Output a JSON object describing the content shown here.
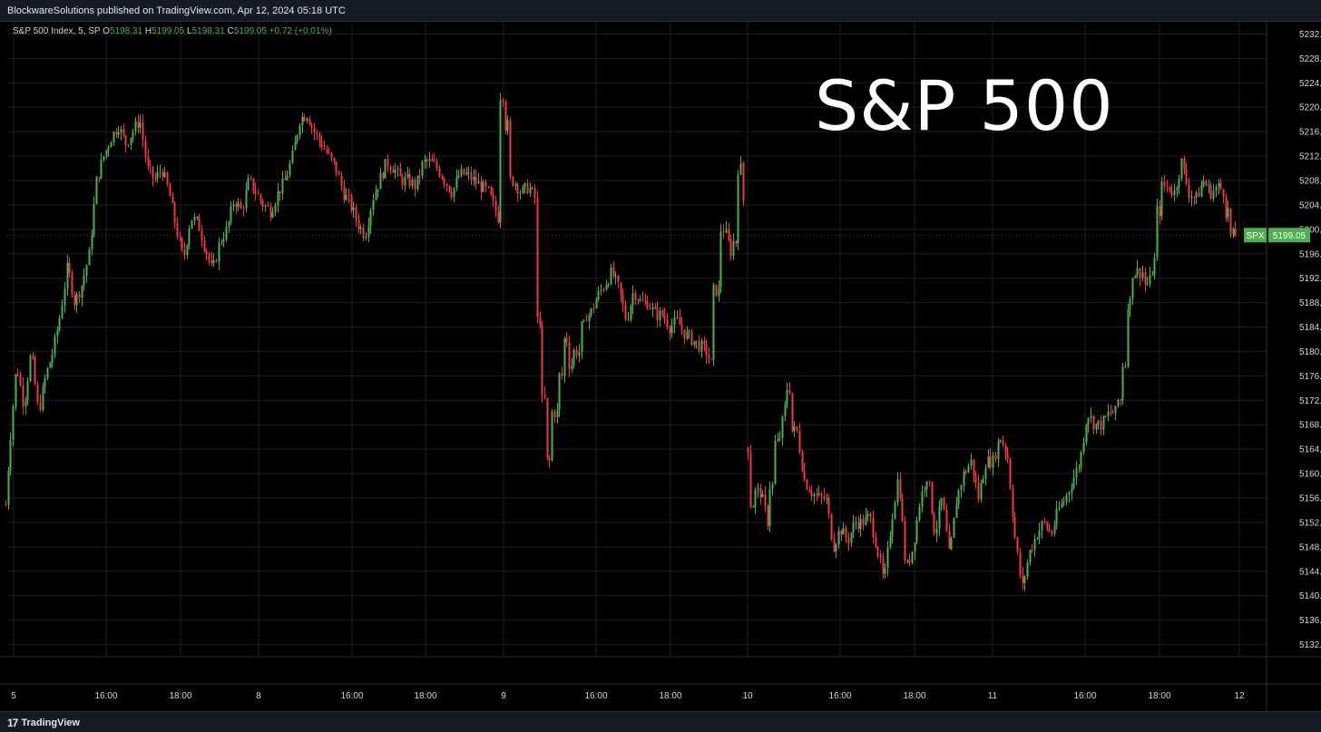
{
  "header": {
    "publish_line": "BlockwareSolutions published on TradingView.com, Apr 12, 2024 05:18 UTC"
  },
  "legend": {
    "symbol": "S&P 500 Index, 5, SP",
    "open_label": "O",
    "open": "5198.31",
    "high_label": "H",
    "high": "5199.05",
    "low_label": "L",
    "low": "5198.31",
    "close_label": "C",
    "close": "5199.05",
    "change": "+0.72 (+0.01%)"
  },
  "overlay_title": "S&P 500",
  "price_tag": {
    "symbol": "SPX",
    "price": "5199.05"
  },
  "footer": {
    "brand": "TradingView",
    "brand_mark": "17"
  },
  "colors": {
    "up": "#4caf50",
    "down": "#f23645",
    "grid": "#1c1f26",
    "axis_text": "#d1d4dc",
    "tag": "#4caf50"
  },
  "chart_data": {
    "type": "candlestick",
    "title": "S&P 500",
    "ylim": [
      5130,
      5234
    ],
    "y_ticks": [
      5132,
      5136,
      5140,
      5144,
      5148,
      5152,
      5156,
      5160,
      5164,
      5168,
      5172,
      5176,
      5180,
      5184,
      5188,
      5192,
      5196,
      5200,
      5204,
      5208,
      5212,
      5216,
      5220,
      5224,
      5228,
      5232
    ],
    "x_ticks": [
      "5",
      "16:00",
      "18:00",
      "8",
      "16:00",
      "18:00",
      "9",
      "16:00",
      "18:00",
      "10",
      "16:00",
      "18:00",
      "11",
      "16:00",
      "18:00",
      "12"
    ],
    "path": [
      [
        0,
        5157
      ],
      [
        3,
        5148
      ],
      [
        10,
        5164
      ],
      [
        18,
        5178
      ],
      [
        26,
        5171
      ],
      [
        34,
        5180
      ],
      [
        42,
        5170
      ],
      [
        50,
        5176
      ],
      [
        58,
        5180
      ],
      [
        66,
        5186
      ],
      [
        74,
        5194
      ],
      [
        82,
        5188
      ],
      [
        90,
        5191
      ],
      [
        98,
        5196
      ],
      [
        106,
        5208
      ],
      [
        114,
        5212
      ],
      [
        122,
        5215
      ],
      [
        130,
        5217
      ],
      [
        138,
        5214
      ],
      [
        146,
        5216
      ],
      [
        154,
        5218
      ],
      [
        162,
        5210
      ],
      [
        170,
        5208
      ],
      [
        178,
        5210
      ],
      [
        186,
        5206
      ],
      [
        194,
        5200
      ],
      [
        202,
        5195
      ],
      [
        210,
        5202
      ],
      [
        218,
        5201
      ],
      [
        226,
        5197
      ],
      [
        234,
        5193
      ],
      [
        242,
        5198
      ],
      [
        250,
        5200
      ],
      [
        258,
        5205
      ],
      [
        266,
        5203
      ],
      [
        274,
        5208
      ],
      [
        282,
        5206
      ],
      [
        290,
        5204
      ],
      [
        298,
        5203
      ],
      [
        306,
        5206
      ],
      [
        314,
        5208
      ],
      [
        322,
        5212
      ],
      [
        330,
        5218
      ],
      [
        338,
        5219
      ],
      [
        346,
        5216
      ],
      [
        354,
        5214
      ],
      [
        362,
        5212
      ],
      [
        370,
        5210
      ],
      [
        378,
        5206
      ],
      [
        386,
        5204
      ],
      [
        394,
        5201
      ],
      [
        402,
        5199
      ],
      [
        410,
        5205
      ],
      [
        418,
        5208
      ],
      [
        426,
        5211
      ],
      [
        434,
        5210
      ],
      [
        442,
        5208
      ],
      [
        450,
        5208
      ],
      [
        458,
        5207
      ],
      [
        466,
        5211
      ],
      [
        474,
        5211
      ],
      [
        482,
        5210
      ],
      [
        490,
        5208
      ],
      [
        498,
        5206
      ],
      [
        506,
        5209
      ],
      [
        514,
        5209
      ],
      [
        522,
        5208
      ],
      [
        530,
        5207
      ],
      [
        538,
        5206
      ],
      [
        546,
        5203
      ],
      [
        550,
        5202
      ],
      [
        555,
        5222
      ],
      [
        561,
        5217
      ],
      [
        566,
        5208
      ],
      [
        574,
        5206
      ],
      [
        582,
        5207
      ],
      [
        590,
        5205
      ],
      [
        596,
        5185
      ],
      [
        602,
        5172
      ],
      [
        608,
        5162
      ],
      [
        614,
        5170
      ],
      [
        620,
        5176
      ],
      [
        626,
        5182
      ],
      [
        632,
        5178
      ],
      [
        638,
        5180
      ],
      [
        644,
        5184
      ],
      [
        650,
        5186
      ],
      [
        658,
        5189
      ],
      [
        666,
        5191
      ],
      [
        674,
        5193
      ],
      [
        682,
        5190
      ],
      [
        690,
        5185
      ],
      [
        698,
        5190
      ],
      [
        706,
        5188
      ],
      [
        714,
        5188
      ],
      [
        722,
        5186
      ],
      [
        730,
        5186
      ],
      [
        738,
        5184
      ],
      [
        746,
        5185
      ],
      [
        754,
        5183
      ],
      [
        762,
        5182
      ],
      [
        770,
        5181
      ],
      [
        778,
        5180
      ],
      [
        786,
        5177
      ],
      [
        792,
        5190
      ],
      [
        798,
        5200
      ],
      [
        806,
        5196
      ],
      [
        812,
        5198
      ],
      [
        818,
        5210
      ],
      [
        826,
        5150
      ],
      [
        832,
        5155
      ],
      [
        838,
        5157
      ],
      [
        846,
        5152
      ],
      [
        852,
        5158
      ],
      [
        858,
        5165
      ],
      [
        866,
        5172
      ],
      [
        872,
        5174
      ],
      [
        878,
        5167
      ],
      [
        886,
        5159
      ],
      [
        894,
        5157
      ],
      [
        902,
        5156
      ],
      [
        910,
        5156
      ],
      [
        918,
        5148
      ],
      [
        926,
        5151
      ],
      [
        934,
        5149
      ],
      [
        942,
        5152
      ],
      [
        950,
        5152
      ],
      [
        958,
        5153
      ],
      [
        966,
        5148
      ],
      [
        974,
        5142
      ],
      [
        982,
        5152
      ],
      [
        990,
        5160
      ],
      [
        998,
        5144
      ],
      [
        1006,
        5148
      ],
      [
        1014,
        5156
      ],
      [
        1022,
        5160
      ],
      [
        1030,
        5150
      ],
      [
        1038,
        5156
      ],
      [
        1046,
        5146
      ],
      [
        1054,
        5156
      ],
      [
        1062,
        5160
      ],
      [
        1070,
        5162
      ],
      [
        1078,
        5156
      ],
      [
        1086,
        5162
      ],
      [
        1094,
        5162
      ],
      [
        1102,
        5166
      ],
      [
        1110,
        5163
      ],
      [
        1118,
        5150
      ],
      [
        1126,
        5141
      ],
      [
        1134,
        5147
      ],
      [
        1142,
        5150
      ],
      [
        1150,
        5152
      ],
      [
        1158,
        5150
      ],
      [
        1166,
        5154
      ],
      [
        1174,
        5156
      ],
      [
        1182,
        5159
      ],
      [
        1190,
        5162
      ],
      [
        1198,
        5170
      ],
      [
        1206,
        5168
      ],
      [
        1214,
        5168
      ],
      [
        1222,
        5170
      ],
      [
        1230,
        5170
      ],
      [
        1236,
        5172
      ],
      [
        1240,
        5178
      ],
      [
        1246,
        5188
      ],
      [
        1252,
        5193
      ],
      [
        1260,
        5193
      ],
      [
        1266,
        5191
      ],
      [
        1274,
        5196
      ],
      [
        1280,
        5203
      ],
      [
        1286,
        5207
      ],
      [
        1294,
        5206
      ],
      [
        1302,
        5211
      ],
      [
        1310,
        5206
      ],
      [
        1318,
        5205
      ],
      [
        1326,
        5208
      ],
      [
        1334,
        5206
      ],
      [
        1342,
        5207
      ],
      [
        1350,
        5206
      ],
      [
        1356,
        5203
      ],
      [
        1362,
        5199
      ]
    ],
    "last_price": 5199.05
  }
}
